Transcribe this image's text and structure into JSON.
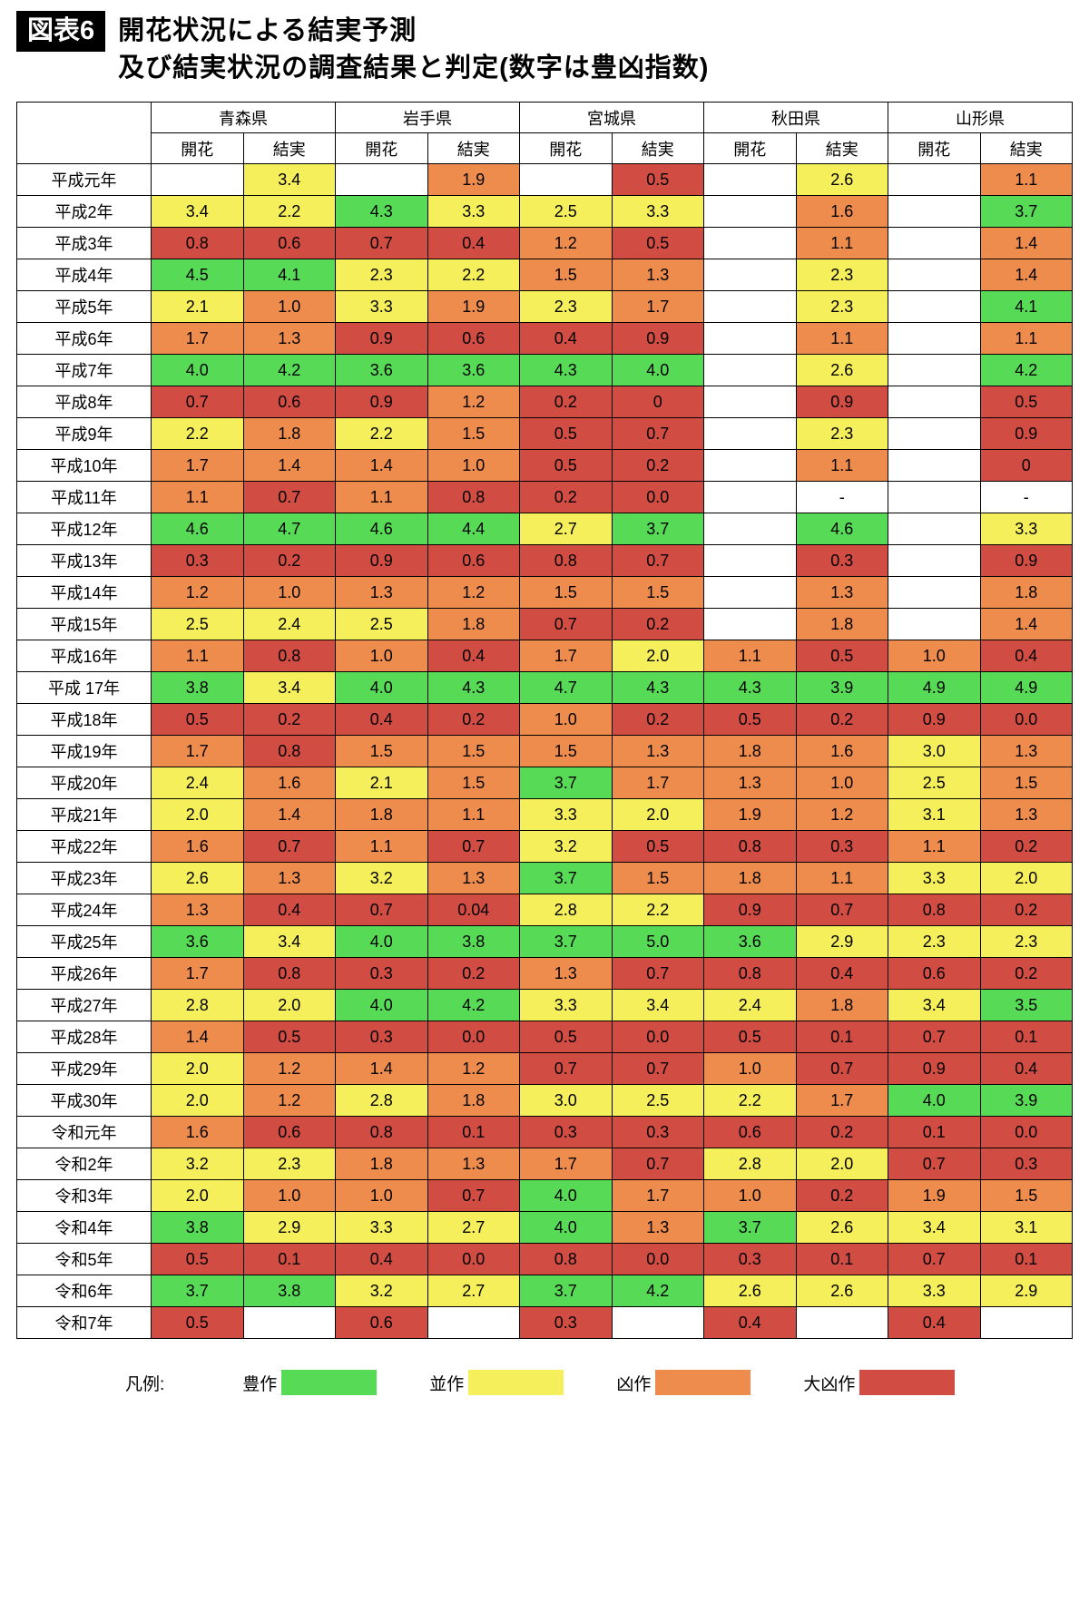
{
  "header": {
    "figure_label": "図表6",
    "title_line1": "開花状況による結実予測",
    "title_line2": "及び結実状況の調査結果と判定(数字は豊凶指数)"
  },
  "chart_data": {
    "type": "table",
    "title": "開花状況による結実予測及び結実状況の調査結果と判定(数字は豊凶指数)",
    "column_groups": [
      "青森県",
      "岩手県",
      "宮城県",
      "秋田県",
      "山形県"
    ],
    "sub_columns": [
      "開花",
      "結実"
    ],
    "rows": [
      {
        "year": "平成元年",
        "values": [
          "",
          "3.4",
          "",
          "1.9",
          "",
          "0.5",
          "",
          "2.6",
          "",
          "1.1"
        ]
      },
      {
        "year": "平成2年",
        "values": [
          "3.4",
          "2.2",
          "4.3",
          "3.3",
          "2.5",
          "3.3",
          "",
          "1.6",
          "",
          "3.7"
        ]
      },
      {
        "year": "平成3年",
        "values": [
          "0.8",
          "0.6",
          "0.7",
          "0.4",
          "1.2",
          "0.5",
          "",
          "1.1",
          "",
          "1.4"
        ]
      },
      {
        "year": "平成4年",
        "values": [
          "4.5",
          "4.1",
          "2.3",
          "2.2",
          "1.5",
          "1.3",
          "",
          "2.3",
          "",
          "1.4"
        ]
      },
      {
        "year": "平成5年",
        "values": [
          "2.1",
          "1.0",
          "3.3",
          "1.9",
          "2.3",
          "1.7",
          "",
          "2.3",
          "",
          "4.1"
        ]
      },
      {
        "year": "平成6年",
        "values": [
          "1.7",
          "1.3",
          "0.9",
          "0.6",
          "0.4",
          "0.9",
          "",
          "1.1",
          "",
          "1.1"
        ]
      },
      {
        "year": "平成7年",
        "values": [
          "4.0",
          "4.2",
          "3.6",
          "3.6",
          "4.3",
          "4.0",
          "",
          "2.6",
          "",
          "4.2"
        ]
      },
      {
        "year": "平成8年",
        "values": [
          "0.7",
          "0.6",
          "0.9",
          "1.2",
          "0.2",
          "0",
          "",
          "0.9",
          "",
          "0.5"
        ]
      },
      {
        "year": "平成9年",
        "values": [
          "2.2",
          "1.8",
          "2.2",
          "1.5",
          "0.5",
          "0.7",
          "",
          "2.3",
          "",
          "0.9"
        ]
      },
      {
        "year": "平成10年",
        "values": [
          "1.7",
          "1.4",
          "1.4",
          "1.0",
          "0.5",
          "0.2",
          "",
          "1.1",
          "",
          "0"
        ]
      },
      {
        "year": "平成11年",
        "values": [
          "1.1",
          "0.7",
          "1.1",
          "0.8",
          "0.2",
          "0.0",
          "",
          "-",
          "",
          "-"
        ]
      },
      {
        "year": "平成12年",
        "values": [
          "4.6",
          "4.7",
          "4.6",
          "4.4",
          "2.7",
          "3.7",
          "",
          "4.6",
          "",
          "3.3"
        ]
      },
      {
        "year": "平成13年",
        "values": [
          "0.3",
          "0.2",
          "0.9",
          "0.6",
          "0.8",
          "0.7",
          "",
          "0.3",
          "",
          "0.9"
        ]
      },
      {
        "year": "平成14年",
        "values": [
          "1.2",
          "1.0",
          "1.3",
          "1.2",
          "1.5",
          "1.5",
          "",
          "1.3",
          "",
          "1.8"
        ]
      },
      {
        "year": "平成15年",
        "values": [
          "2.5",
          "2.4",
          "2.5",
          "1.8",
          "0.7",
          "0.2",
          "",
          "1.8",
          "",
          "1.4"
        ]
      },
      {
        "year": "平成16年",
        "values": [
          "1.1",
          "0.8",
          "1.0",
          "0.4",
          "1.7",
          "2.0",
          "1.1",
          "0.5",
          "1.0",
          "0.4"
        ]
      },
      {
        "year": "平成 17年",
        "values": [
          "3.8",
          "3.4",
          "4.0",
          "4.3",
          "4.7",
          "4.3",
          "4.3",
          "3.9",
          "4.9",
          "4.9"
        ]
      },
      {
        "year": "平成18年",
        "values": [
          "0.5",
          "0.2",
          "0.4",
          "0.2",
          "1.0",
          "0.2",
          "0.5",
          "0.2",
          "0.9",
          "0.0"
        ]
      },
      {
        "year": "平成19年",
        "values": [
          "1.7",
          "0.8",
          "1.5",
          "1.5",
          "1.5",
          "1.3",
          "1.8",
          "1.6",
          "3.0",
          "1.3"
        ]
      },
      {
        "year": "平成20年",
        "values": [
          "2.4",
          "1.6",
          "2.1",
          "1.5",
          "3.7",
          "1.7",
          "1.3",
          "1.0",
          "2.5",
          "1.5"
        ]
      },
      {
        "year": "平成21年",
        "values": [
          "2.0",
          "1.4",
          "1.8",
          "1.1",
          "3.3",
          "2.0",
          "1.9",
          "1.2",
          "3.1",
          "1.3"
        ]
      },
      {
        "year": "平成22年",
        "values": [
          "1.6",
          "0.7",
          "1.1",
          "0.7",
          "3.2",
          "0.5",
          "0.8",
          "0.3",
          "1.1",
          "0.2"
        ]
      },
      {
        "year": "平成23年",
        "values": [
          "2.6",
          "1.3",
          "3.2",
          "1.3",
          "3.7",
          "1.5",
          "1.8",
          "1.1",
          "3.3",
          "2.0"
        ]
      },
      {
        "year": "平成24年",
        "values": [
          "1.3",
          "0.4",
          "0.7",
          "0.04",
          "2.8",
          "2.2",
          "0.9",
          "0.7",
          "0.8",
          "0.2"
        ]
      },
      {
        "year": "平成25年",
        "values": [
          "3.6",
          "3.4",
          "4.0",
          "3.8",
          "3.7",
          "5.0",
          "3.6",
          "2.9",
          "2.3",
          "2.3"
        ]
      },
      {
        "year": "平成26年",
        "values": [
          "1.7",
          "0.8",
          "0.3",
          "0.2",
          "1.3",
          "0.7",
          "0.8",
          "0.4",
          "0.6",
          "0.2"
        ]
      },
      {
        "year": "平成27年",
        "values": [
          "2.8",
          "2.0",
          "4.0",
          "4.2",
          "3.3",
          "3.4",
          "2.4",
          "1.8",
          "3.4",
          "3.5"
        ]
      },
      {
        "year": "平成28年",
        "values": [
          "1.4",
          "0.5",
          "0.3",
          "0.0",
          "0.5",
          "0.0",
          "0.5",
          "0.1",
          "0.7",
          "0.1"
        ]
      },
      {
        "year": "平成29年",
        "values": [
          "2.0",
          "1.2",
          "1.4",
          "1.2",
          "0.7",
          "0.7",
          "1.0",
          "0.7",
          "0.9",
          "0.4"
        ]
      },
      {
        "year": "平成30年",
        "values": [
          "2.0",
          "1.2",
          "2.8",
          "1.8",
          "3.0",
          "2.5",
          "2.2",
          "1.7",
          "4.0",
          "3.9"
        ]
      },
      {
        "year": "令和元年",
        "values": [
          "1.6",
          "0.6",
          "0.8",
          "0.1",
          "0.3",
          "0.3",
          "0.6",
          "0.2",
          "0.1",
          "0.0"
        ]
      },
      {
        "year": "令和2年",
        "values": [
          "3.2",
          "2.3",
          "1.8",
          "1.3",
          "1.7",
          "0.7",
          "2.8",
          "2.0",
          "0.7",
          "0.3"
        ]
      },
      {
        "year": "令和3年",
        "values": [
          "2.0",
          "1.0",
          "1.0",
          "0.7",
          "4.0",
          "1.7",
          "1.0",
          "0.2",
          "1.9",
          "1.5"
        ]
      },
      {
        "year": "令和4年",
        "values": [
          "3.8",
          "2.9",
          "3.3",
          "2.7",
          "4.0",
          "1.3",
          "3.7",
          "2.6",
          "3.4",
          "3.1"
        ]
      },
      {
        "year": "令和5年",
        "values": [
          "0.5",
          "0.1",
          "0.4",
          "0.0",
          "0.8",
          "0.0",
          "0.3",
          "0.1",
          "0.7",
          "0.1"
        ]
      },
      {
        "year": "令和6年",
        "values": [
          "3.7",
          "3.8",
          "3.2",
          "2.7",
          "3.7",
          "4.2",
          "2.6",
          "2.6",
          "3.3",
          "2.9"
        ]
      },
      {
        "year": "令和7年",
        "values": [
          "0.5",
          "",
          "0.6",
          "",
          "0.3",
          "",
          "0.4",
          "",
          "0.4",
          ""
        ]
      }
    ],
    "color_scale": {
      "legend_title": "凡例:",
      "classes": [
        {
          "label": "豊作",
          "color": "#57DB57",
          "min": 3.5
        },
        {
          "label": "並作",
          "color": "#F5EF5B",
          "min": 2.0
        },
        {
          "label": "凶作",
          "color": "#EE8C4D",
          "min": 1.0
        },
        {
          "label": "大凶作",
          "color": "#D14C43",
          "min": 0
        }
      ]
    }
  }
}
